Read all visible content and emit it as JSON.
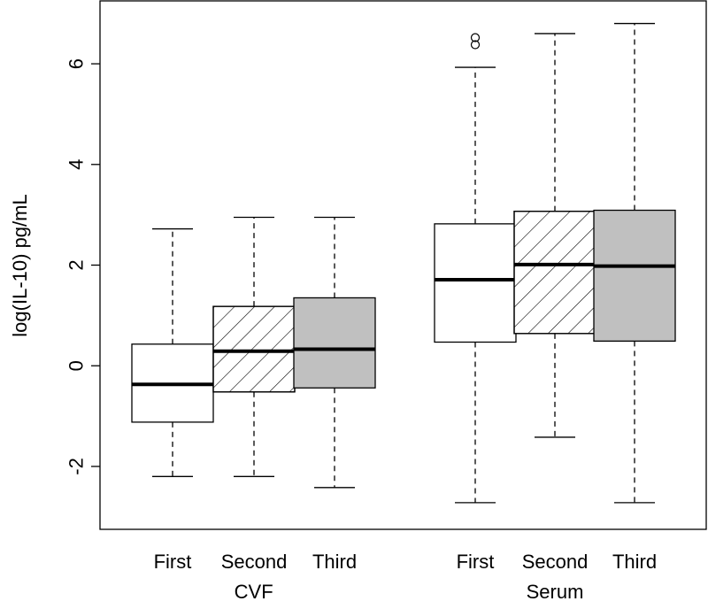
{
  "chart_data": {
    "type": "boxplot",
    "title": "",
    "xlabel": "",
    "ylabel": "log(IL-10) pg/mL",
    "ylim": [
      -3.25,
      7.25
    ],
    "yticks": [
      -2,
      0,
      2,
      4,
      6
    ],
    "yticklabels": [
      "-2",
      "0",
      "2",
      "4",
      "6"
    ],
    "groups": [
      {
        "label": "CVF",
        "categories": [
          0,
          1,
          2
        ]
      },
      {
        "label": "Serum",
        "categories": [
          3,
          4,
          5
        ]
      }
    ],
    "boxes": [
      {
        "label": "First",
        "group": "CVF",
        "fill": "plain",
        "whisker_low": -2.2,
        "q1": -1.12,
        "median": -0.37,
        "q3": 0.43,
        "whisker_high": 2.72,
        "outliers": []
      },
      {
        "label": "Second",
        "group": "CVF",
        "fill": "hatched",
        "whisker_low": -2.2,
        "q1": -0.52,
        "median": 0.29,
        "q3": 1.18,
        "whisker_high": 2.95,
        "outliers": []
      },
      {
        "label": "Third",
        "group": "CVF",
        "fill": "shaded",
        "whisker_low": -2.42,
        "q1": -0.44,
        "median": 0.33,
        "q3": 1.35,
        "whisker_high": 2.95,
        "outliers": []
      },
      {
        "label": "First",
        "group": "Serum",
        "fill": "plain",
        "whisker_low": -2.72,
        "q1": 0.47,
        "median": 1.71,
        "q3": 2.82,
        "whisker_high": 5.93,
        "outliers": [
          6.38,
          6.52
        ]
      },
      {
        "label": "Second",
        "group": "Serum",
        "fill": "hatched",
        "whisker_low": -1.42,
        "q1": 0.64,
        "median": 2.01,
        "q3": 3.07,
        "whisker_high": 6.6,
        "outliers": []
      },
      {
        "label": "Third",
        "group": "Serum",
        "fill": "shaded",
        "whisker_low": -2.72,
        "q1": 0.49,
        "median": 1.98,
        "q3": 3.09,
        "whisker_high": 6.8,
        "outliers": []
      }
    ],
    "colors": {
      "plain": "#ffffff",
      "shaded": "#c0c0c0",
      "hatch": "#000000",
      "stroke": "#000000"
    }
  }
}
